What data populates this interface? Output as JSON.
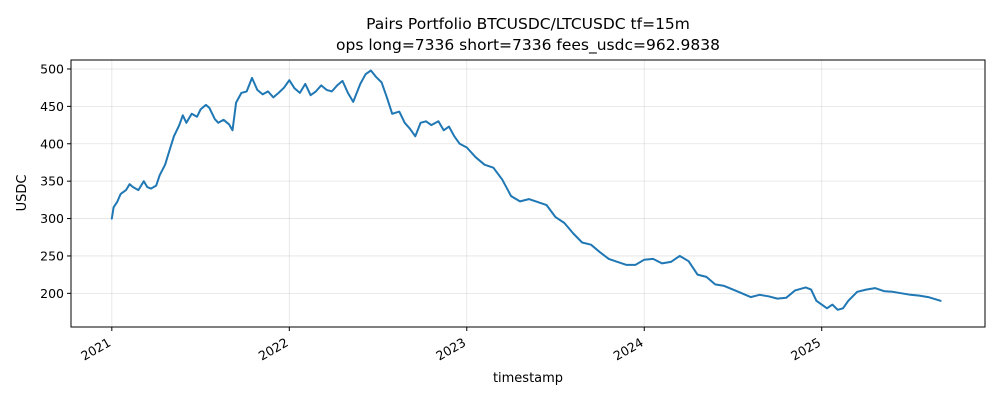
{
  "chart_data": {
    "type": "line",
    "title": "Pairs Portfolio BTCUSDC/LTCUSDC tf=15m",
    "subtitle": "ops long=7336 short=7336 fees_usdc=962.9838",
    "xlabel": "timestamp",
    "ylabel": "USDC",
    "xlim": [
      2020.77,
      2025.92
    ],
    "ylim": [
      155,
      512
    ],
    "grid": true,
    "line_color": "#1f77b4",
    "x_ticks": [
      {
        "value": 2021,
        "label": "2021"
      },
      {
        "value": 2022,
        "label": "2022"
      },
      {
        "value": 2023,
        "label": "2023"
      },
      {
        "value": 2024,
        "label": "2024"
      },
      {
        "value": 2025,
        "label": "2025"
      }
    ],
    "y_ticks": [
      {
        "value": 200,
        "label": "200"
      },
      {
        "value": 250,
        "label": "250"
      },
      {
        "value": 300,
        "label": "300"
      },
      {
        "value": 350,
        "label": "350"
      },
      {
        "value": 400,
        "label": "400"
      },
      {
        "value": 450,
        "label": "450"
      },
      {
        "value": 500,
        "label": "500"
      }
    ],
    "series": [
      {
        "x": [
          2021.0,
          2021.01,
          2021.03,
          2021.05,
          2021.08,
          2021.1,
          2021.12,
          2021.15,
          2021.18,
          2021.2,
          2021.22,
          2021.25,
          2021.27,
          2021.3,
          2021.33,
          2021.35,
          2021.38,
          2021.4,
          2021.42,
          2021.45,
          2021.48,
          2021.5,
          2021.53,
          2021.55,
          2021.58,
          2021.6,
          2021.63,
          2021.66,
          2021.68,
          2021.7,
          2021.73,
          2021.76,
          2021.79,
          2021.82,
          2021.85,
          2021.88,
          2021.91,
          2021.94,
          2021.97,
          2022.0,
          2022.03,
          2022.06,
          2022.09,
          2022.12,
          2022.15,
          2022.18,
          2022.21,
          2022.24,
          2022.27,
          2022.3,
          2022.33,
          2022.36,
          2022.4,
          2022.43,
          2022.46,
          2022.49,
          2022.52,
          2022.55,
          2022.58,
          2022.62,
          2022.65,
          2022.68,
          2022.71,
          2022.74,
          2022.77,
          2022.8,
          2022.84,
          2022.87,
          2022.9,
          2022.93,
          2022.96,
          2023.0,
          2023.05,
          2023.1,
          2023.15,
          2023.2,
          2023.25,
          2023.3,
          2023.35,
          2023.4,
          2023.45,
          2023.5,
          2023.55,
          2023.6,
          2023.65,
          2023.7,
          2023.75,
          2023.8,
          2023.85,
          2023.9,
          2023.95,
          2024.0,
          2024.05,
          2024.1,
          2024.15,
          2024.2,
          2024.25,
          2024.3,
          2024.35,
          2024.4,
          2024.45,
          2024.5,
          2024.55,
          2024.6,
          2024.65,
          2024.7,
          2024.75,
          2024.8,
          2024.85,
          2024.88,
          2024.91,
          2024.94,
          2024.97,
          2025.0,
          2025.03,
          2025.06,
          2025.09,
          2025.12,
          2025.15,
          2025.2,
          2025.25,
          2025.3,
          2025.35,
          2025.4,
          2025.45,
          2025.5,
          2025.55,
          2025.6,
          2025.67
        ],
        "y": [
          300,
          315,
          322,
          333,
          338,
          346,
          342,
          338,
          350,
          342,
          340,
          344,
          358,
          372,
          395,
          410,
          425,
          438,
          428,
          440,
          436,
          446,
          452,
          448,
          433,
          428,
          432,
          426,
          418,
          455,
          468,
          470,
          488,
          472,
          466,
          470,
          462,
          468,
          475,
          485,
          474,
          468,
          480,
          465,
          470,
          478,
          472,
          470,
          478,
          484,
          468,
          456,
          480,
          493,
          498,
          489,
          482,
          462,
          440,
          443,
          428,
          420,
          410,
          428,
          430,
          425,
          430,
          418,
          423,
          410,
          400,
          395,
          382,
          372,
          368,
          352,
          330,
          323,
          326,
          322,
          318,
          302,
          294,
          280,
          268,
          265,
          255,
          246,
          242,
          238,
          238,
          245,
          246,
          240,
          242,
          250,
          243,
          225,
          222,
          212,
          210,
          205,
          200,
          195,
          198,
          196,
          193,
          194,
          204,
          206,
          208,
          205,
          190,
          185,
          180,
          185,
          178,
          180,
          190,
          202,
          205,
          207,
          203,
          202,
          200,
          198,
          197,
          195,
          190
        ]
      }
    ]
  }
}
